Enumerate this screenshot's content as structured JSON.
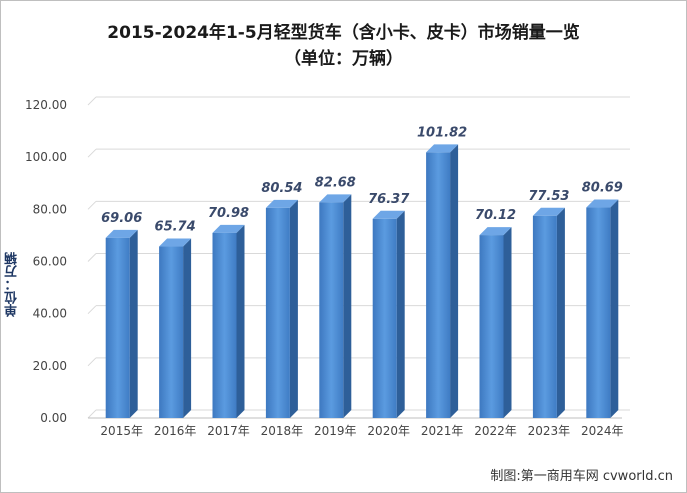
{
  "chart_data": {
    "type": "bar",
    "title": "2015-2024年1-5月轻型货车（含小卡、皮卡）市场销量一览",
    "subtitle": "（单位：万辆）",
    "ylabel": "单位：万辆",
    "xlabel": "",
    "categories": [
      "2015年",
      "2016年",
      "2017年",
      "2018年",
      "2019年",
      "2020年",
      "2021年",
      "2022年",
      "2023年",
      "2024年"
    ],
    "values": [
      69.06,
      65.74,
      70.98,
      80.54,
      82.68,
      76.37,
      101.82,
      70.12,
      77.53,
      80.69
    ],
    "value_labels": [
      "69.06",
      "65.74",
      "70.98",
      "80.54",
      "82.68",
      "76.37",
      "101.82",
      "70.12",
      "77.53",
      "80.69"
    ],
    "ylim": [
      0,
      120
    ],
    "yticks": [
      "0.00",
      "20.00",
      "40.00",
      "60.00",
      "80.00",
      "100.00",
      "120.00"
    ],
    "grid": true,
    "bar_color": "#4a86cc",
    "credit": "制图:第一商用车网 cvworld.cn"
  }
}
